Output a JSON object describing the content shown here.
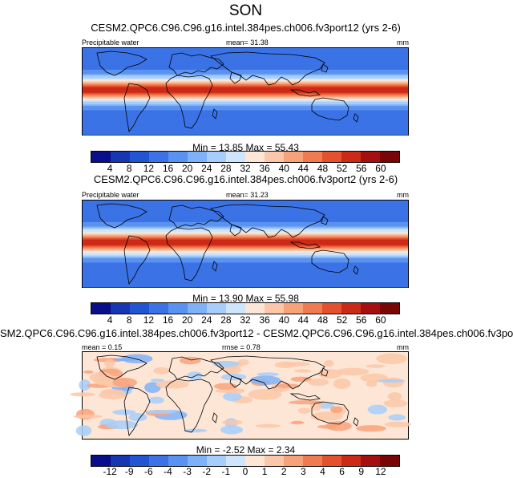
{
  "page": {
    "season": "SON"
  },
  "panels": [
    {
      "title": "CESM2.QPC6.C96.C96.g16.intel.384pes.ch006.fv3port12 (yrs 2-6)",
      "left_label": "Precipitable water",
      "center_label": "mean=  31.38",
      "right_label": "mm",
      "stats": "Min =  13.85 Max =  55.43"
    },
    {
      "title": "CESM2.QPC6.C96.C96.g16.intel.384pes.ch006.fv3port2 (yrs 2-6)",
      "left_label": "Precipitable water",
      "center_label": "mean=  31.23",
      "right_label": "mm",
      "stats": "Min =  13.90 Max =  55.98"
    },
    {
      "title": "SM2.QPC6.C96.C96.g16.intel.384pes.ch006.fv3port12 - CESM2.QPC6.C96.C96.g16.intel.384pes.ch006.fv3po",
      "left_label": "mean =   0.15",
      "center_label": "rmse =   0.78",
      "right_label": "mm",
      "stats": "Min =  -2.52 Max =   2.34"
    }
  ],
  "chart_data": [
    {
      "type": "heatmap",
      "title": "CESM2.QPC6.C96.C96.g16.intel.384pes.ch006.fv3port12 (yrs 2-6)",
      "variable": "Precipitable water",
      "units": "mm",
      "mean": 31.38,
      "min": 13.85,
      "max": 55.43,
      "colorbar_levels": [
        "4",
        "8",
        "12",
        "16",
        "20",
        "24",
        "28",
        "32",
        "36",
        "40",
        "44",
        "48",
        "52",
        "56",
        "60"
      ],
      "colors": [
        "#0b0e8a",
        "#1736b4",
        "#2255d4",
        "#3b73e6",
        "#5a92f1",
        "#7fb1f8",
        "#a7cefb",
        "#cfe5fc",
        "#fde6d6",
        "#fcc7a8",
        "#f8a27a",
        "#f17b50",
        "#e4512d",
        "#cc2a17",
        "#a50f0f",
        "#7a0505"
      ],
      "profile_values": [
        16,
        22,
        36,
        55,
        36,
        22,
        16
      ]
    },
    {
      "type": "heatmap",
      "title": "CESM2.QPC6.C96.C96.g16.intel.384pes.ch006.fv3port2 (yrs 2-6)",
      "variable": "Precipitable water",
      "units": "mm",
      "mean": 31.23,
      "min": 13.9,
      "max": 55.98,
      "colorbar_levels": [
        "4",
        "8",
        "12",
        "16",
        "20",
        "24",
        "28",
        "32",
        "36",
        "40",
        "44",
        "48",
        "52",
        "56",
        "60"
      ],
      "colors": [
        "#0b0e8a",
        "#1736b4",
        "#2255d4",
        "#3b73e6",
        "#5a92f1",
        "#7fb1f8",
        "#a7cefb",
        "#cfe5fc",
        "#fde6d6",
        "#fcc7a8",
        "#f8a27a",
        "#f17b50",
        "#e4512d",
        "#cc2a17",
        "#a50f0f",
        "#7a0505"
      ],
      "profile_values": [
        16,
        22,
        36,
        56,
        36,
        22,
        16
      ]
    },
    {
      "type": "heatmap",
      "title": "SM2.QPC6.C96.C96.g16.intel.384pes.ch006.fv3port12 - CESM2.QPC6.C96.C96.g16.intel.384pes.ch006.fv3po",
      "units": "mm",
      "mean": 0.15,
      "rmse": 0.78,
      "min": -2.52,
      "max": 2.34,
      "colorbar_levels": [
        "-12",
        "-9",
        "-6",
        "-4",
        "-3",
        "-2",
        "-1",
        "0",
        "1",
        "2",
        "3",
        "4",
        "6",
        "9",
        "12"
      ],
      "colors": [
        "#0b0e8a",
        "#1736b4",
        "#2255d4",
        "#3b73e6",
        "#5a92f1",
        "#7fb1f8",
        "#a7cefb",
        "#cfe5fc",
        "#fde6d6",
        "#fcc7a8",
        "#f8a27a",
        "#f17b50",
        "#e4512d",
        "#cc2a17",
        "#a50f0f",
        "#7a0505"
      ]
    }
  ]
}
